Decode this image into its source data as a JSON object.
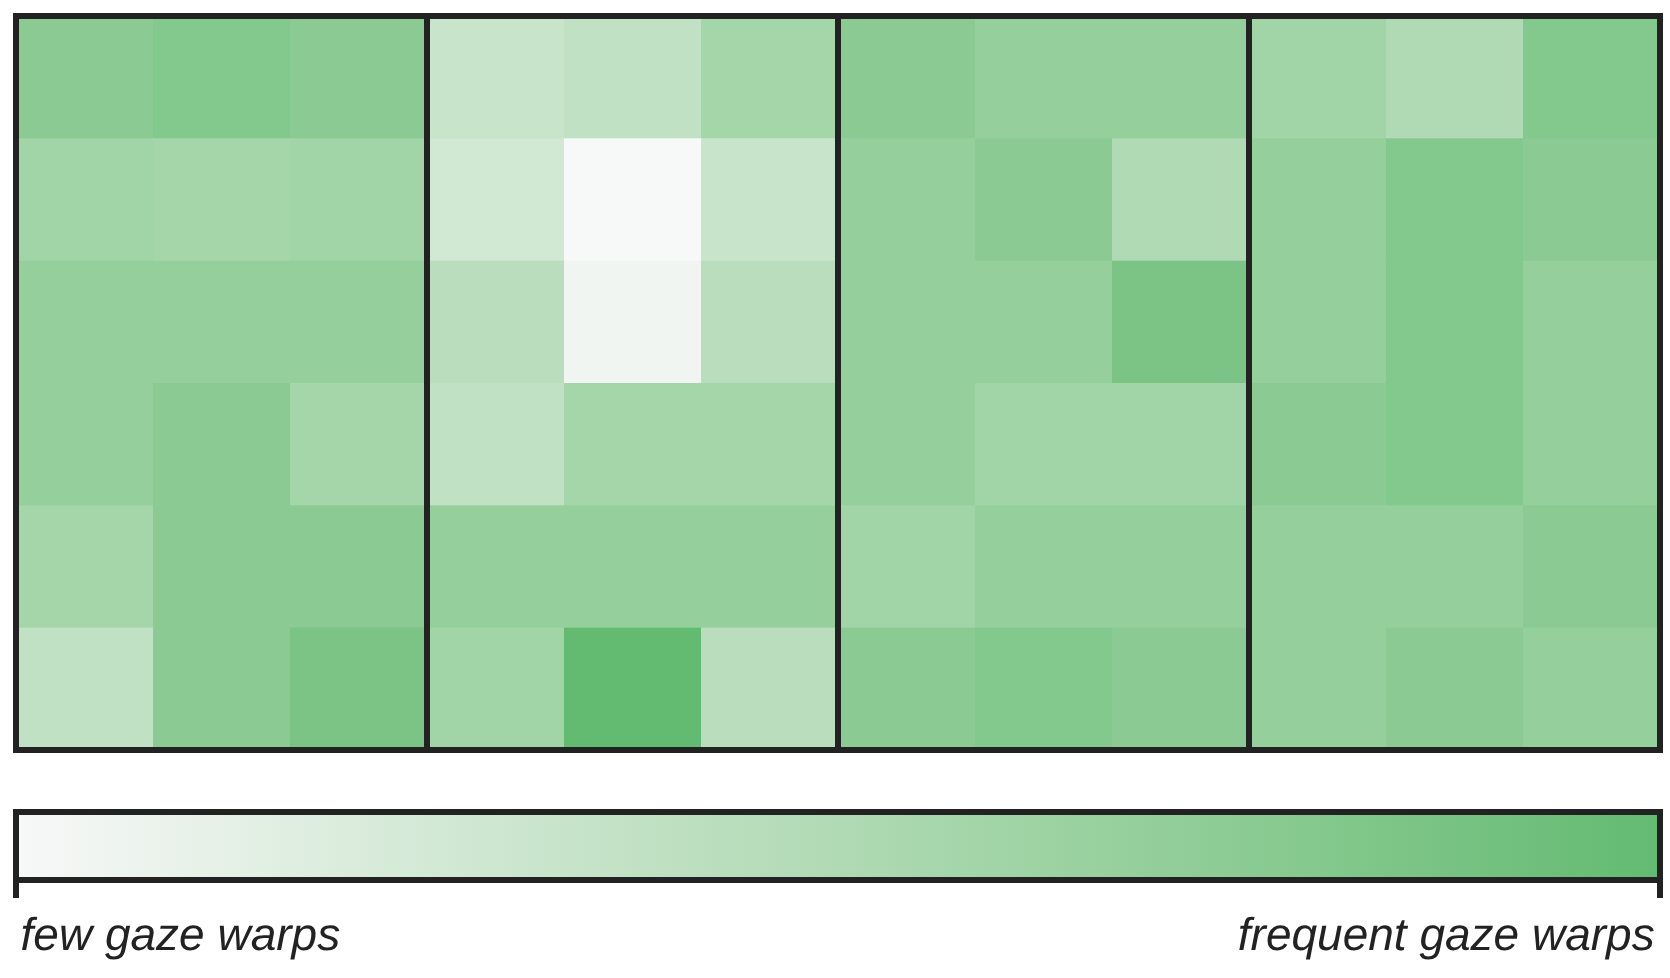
{
  "chart_data": {
    "type": "heatmap",
    "categories": [
      null,
      null,
      null,
      null,
      null,
      null,
      null,
      null,
      null,
      null,
      null,
      null
    ],
    "y_categories": [
      null,
      null,
      null,
      null,
      null,
      null
    ],
    "cells": [
      [
        0.75,
        0.8,
        0.75,
        0.33,
        0.38,
        0.57,
        0.75,
        0.68,
        0.68,
        0.6,
        0.5,
        0.8
      ],
      [
        0.6,
        0.57,
        0.6,
        0.27,
        0,
        0.33,
        0.68,
        0.75,
        0.5,
        0.68,
        0.8,
        0.75
      ],
      [
        0.68,
        0.68,
        0.68,
        0.43,
        0.05,
        0.43,
        0.68,
        0.68,
        0.85,
        0.68,
        0.8,
        0.68
      ],
      [
        0.68,
        0.75,
        0.57,
        0.38,
        0.57,
        0.57,
        0.68,
        0.6,
        0.6,
        0.75,
        0.8,
        0.68
      ],
      [
        0.57,
        0.75,
        0.75,
        0.68,
        0.68,
        0.68,
        0.6,
        0.68,
        0.68,
        0.68,
        0.68,
        0.75
      ],
      [
        0.38,
        0.75,
        0.85,
        0.6,
        1,
        0.43,
        0.75,
        0.8,
        0.75,
        0.68,
        0.75,
        0.68
      ]
    ],
    "clim": [
      0,
      1
    ],
    "cticks": [
      {
        "value": 0.1,
        "label": "few gaze warps"
      },
      {
        "value": 0.87,
        "label": "frequent gaze warps"
      }
    ]
  }
}
